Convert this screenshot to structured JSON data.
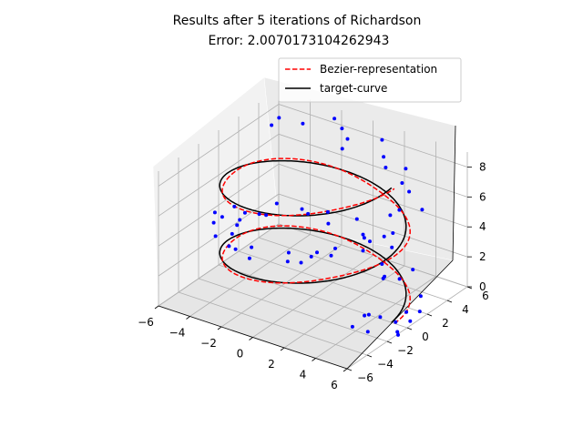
{
  "chart_data": {
    "type": "scatter",
    "title": "Results after 5 iterations of Richardson",
    "subtitle": "Error: 2.0070173104262943",
    "legend_position": "top-right",
    "grid": true,
    "xlim": [
      -6,
      6
    ],
    "ylim": [
      -6,
      6
    ],
    "zlim": [
      0,
      9
    ],
    "x_ticks": [
      "−6",
      "−4",
      "−2",
      "0",
      "2",
      "4",
      "6"
    ],
    "y_ticks": [
      "−6",
      "−4",
      "−2",
      "0",
      "2",
      "4",
      "6"
    ],
    "z_ticks": [
      "0",
      "2",
      "4",
      "6",
      "8"
    ],
    "colors": {
      "bezier": "#ff0000",
      "target": "#000000",
      "points": "#0000ff"
    },
    "series": [
      {
        "name": "Bezier-representation",
        "kind": "dashed-line",
        "shape": "helix",
        "radius": 5,
        "height": [
          0,
          9
        ],
        "turns": 2
      },
      {
        "name": "target-curve",
        "kind": "line",
        "shape": "helix",
        "radius": 5,
        "height": [
          0,
          9
        ],
        "turns": 2
      },
      {
        "kind": "points",
        "points": [
          [
            5.95,
            -0.9,
            0.12
          ],
          [
            4.6,
            -0.5,
            0.45
          ],
          [
            6.25,
            -1.3,
            0.2
          ],
          [
            4.9,
            -2.2,
            0.35
          ],
          [
            5.5,
            0.7,
            0.55
          ],
          [
            4.3,
            -2.8,
            0.75
          ],
          [
            6.1,
            1.1,
            0.62
          ],
          [
            5.4,
            2.3,
            0.85
          ],
          [
            2.9,
            2.6,
            1.15
          ],
          [
            4.0,
            3.7,
            1.5
          ],
          [
            1.9,
            4.9,
            1.7
          ],
          [
            0.4,
            4.5,
            2.0
          ],
          [
            -0.9,
            5.8,
            2.2
          ],
          [
            -2.3,
            5.1,
            2.5
          ],
          [
            -2.8,
            3.9,
            2.75
          ],
          [
            -4.6,
            3.6,
            2.95
          ],
          [
            -4.0,
            1.6,
            3.3
          ],
          [
            -5.7,
            1.1,
            3.5
          ],
          [
            -4.4,
            -0.4,
            3.75
          ],
          [
            -5.1,
            -1.9,
            4.0
          ],
          [
            -3.9,
            -3.6,
            4.3
          ],
          [
            -3.1,
            -3.2,
            4.55
          ],
          [
            -1.8,
            -4.9,
            4.75
          ],
          [
            -0.4,
            -5.7,
            5.0
          ],
          [
            1.2,
            -4.3,
            5.3
          ],
          [
            1.9,
            -5.5,
            5.5
          ],
          [
            3.4,
            -3.1,
            5.8
          ],
          [
            3.9,
            -4.3,
            6.05
          ],
          [
            4.9,
            -2.0,
            6.3
          ],
          [
            5.6,
            -0.8,
            6.55
          ],
          [
            4.6,
            0.5,
            6.8
          ],
          [
            5.8,
            1.8,
            7.0
          ],
          [
            4.4,
            2.7,
            7.3
          ],
          [
            3.1,
            4.4,
            7.6
          ],
          [
            2.4,
            3.5,
            7.85
          ],
          [
            0.7,
            5.8,
            8.05
          ],
          [
            -0.6,
            4.4,
            8.3
          ],
          [
            -2.2,
            5.6,
            8.55
          ],
          [
            -3.0,
            3.7,
            8.8
          ],
          [
            -4.2,
            3.2,
            9.0
          ],
          [
            5.2,
            0.1,
            0.05
          ],
          [
            4.3,
            -1.6,
            0.95
          ],
          [
            2.1,
            3.6,
            1.25
          ],
          [
            -1.7,
            4.2,
            2.35
          ],
          [
            -5.2,
            -0.9,
            3.9
          ],
          [
            -1.1,
            -4.4,
            4.9
          ],
          [
            2.7,
            -4.4,
            5.6
          ],
          [
            5.3,
            -1.2,
            6.4
          ],
          [
            3.7,
            3.1,
            7.45
          ],
          [
            -1.4,
            5.1,
            8.4
          ],
          [
            6.0,
            0.3,
            0.3
          ],
          [
            3.6,
            3.0,
            1.05
          ],
          [
            -3.5,
            4.4,
            2.6
          ],
          [
            -4.9,
            0.9,
            3.45
          ],
          [
            -2.6,
            -4.3,
            4.4
          ],
          [
            2.5,
            -5.1,
            5.45
          ],
          [
            4.8,
            1.1,
            6.95
          ],
          [
            1.5,
            4.7,
            7.7
          ],
          [
            -4.1,
            2.3,
            8.95
          ],
          [
            0.0,
            5.0,
            1.85
          ],
          [
            5.1,
            -3.0,
            6.2
          ],
          [
            -5.6,
            -1.0,
            4.1
          ],
          [
            3.2,
            2.0,
            1.4
          ],
          [
            -3.3,
            -2.4,
            4.7
          ],
          [
            4.2,
            -1.0,
            0.7
          ],
          [
            2.3,
            -3.2,
            5.2
          ],
          [
            -0.3,
            3.4,
            8.2
          ],
          [
            -4.5,
            1.7,
            3.15
          ]
        ]
      }
    ]
  }
}
